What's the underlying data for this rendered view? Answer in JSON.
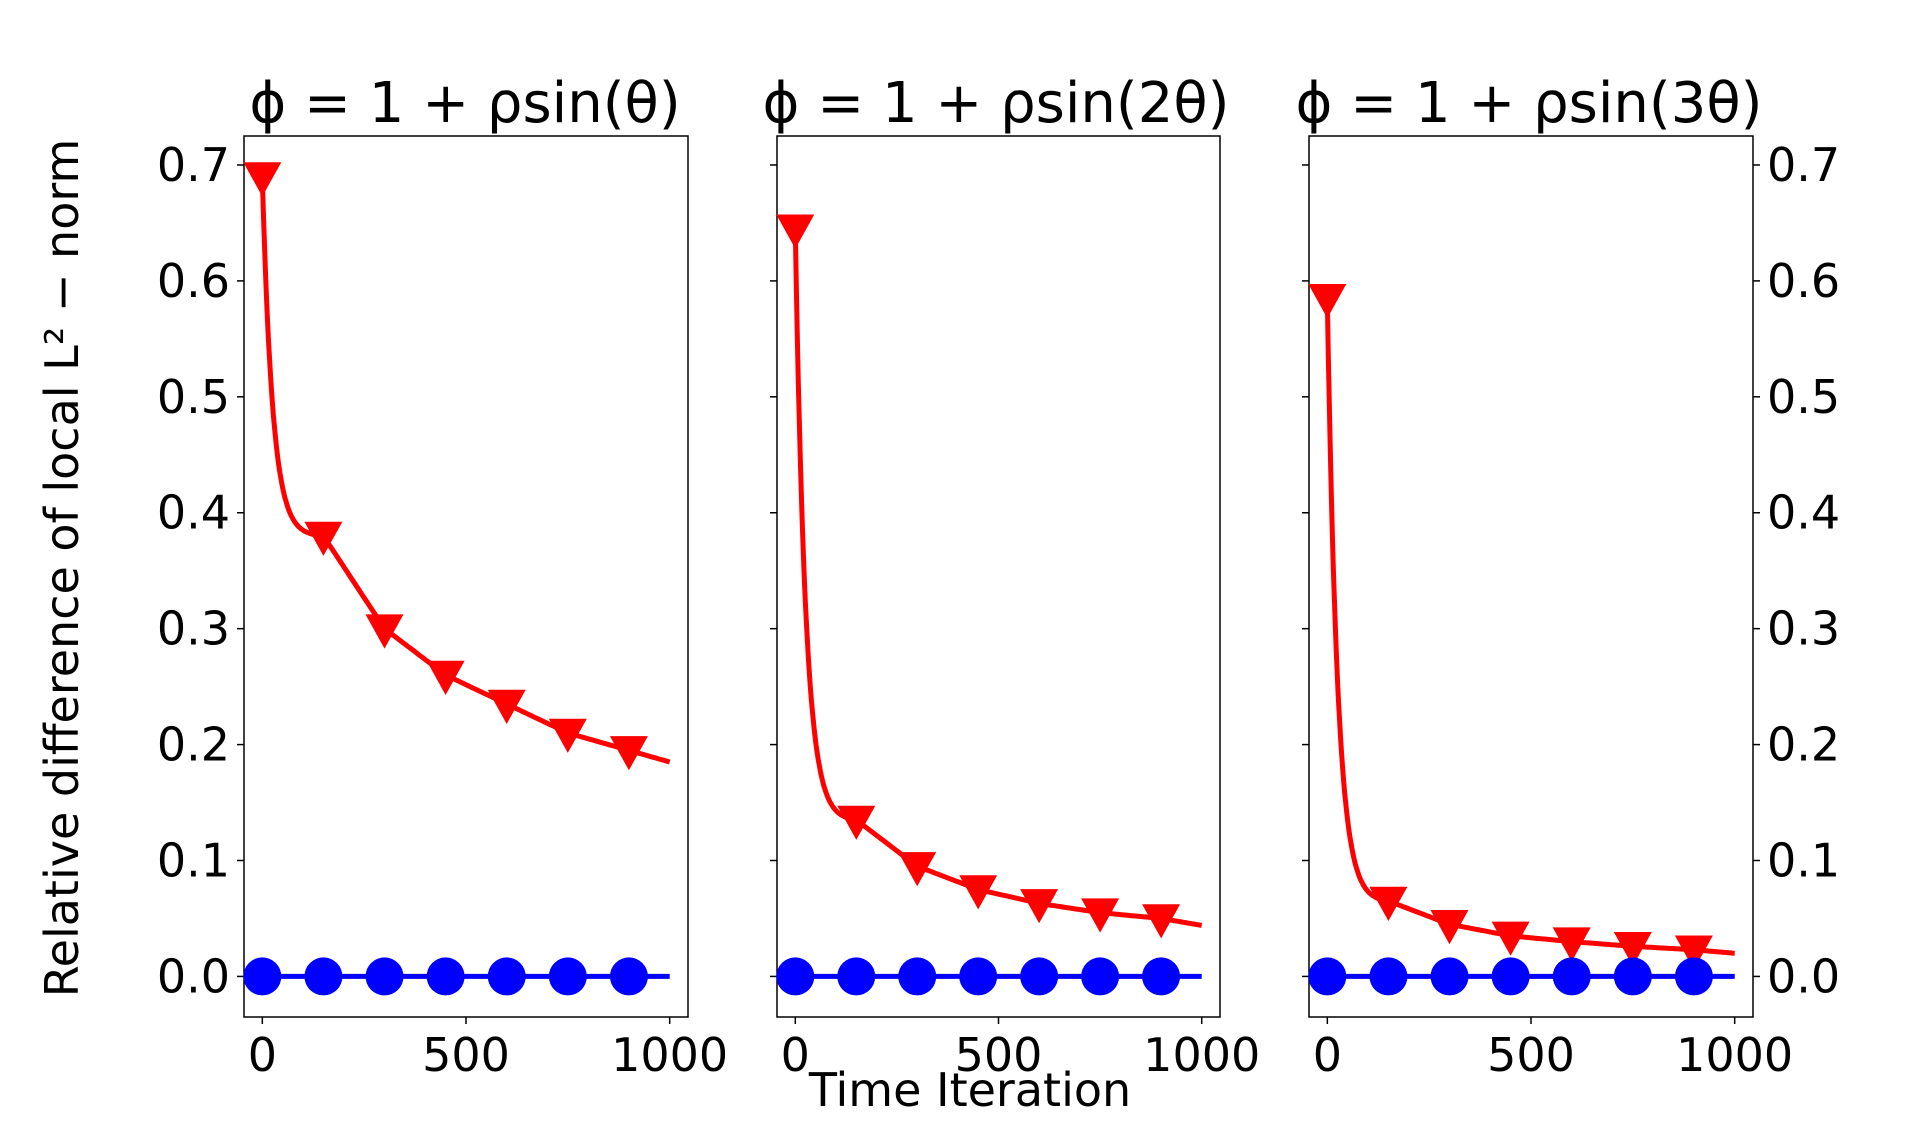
{
  "figure": {
    "ylabel": "Relative difference of local L² − norm",
    "xlabel": "Time Iteration",
    "colors": {
      "decaying": "#ff0000",
      "flat": "#0000ff",
      "axes": "#000000"
    }
  },
  "chart_data": [
    {
      "type": "line",
      "title": "ϕ = 1 + ρsin(θ)",
      "xlim": [
        -45,
        1045
      ],
      "ylim": [
        -0.035,
        0.725
      ],
      "xticks": [
        "0",
        "500",
        "1000"
      ],
      "yticks": [
        "0.0",
        "0.1",
        "0.2",
        "0.3",
        "0.4",
        "0.5",
        "0.6",
        "0.7"
      ],
      "series": [
        {
          "marker": "triangle-down",
          "color": "#ff0000",
          "x": [
            0,
            150,
            300,
            450,
            600,
            750,
            900,
            1000
          ],
          "y": [
            0.69,
            0.38,
            0.3,
            0.26,
            0.235,
            0.21,
            0.195,
            0.185
          ]
        },
        {
          "marker": "circle",
          "color": "#0000ff",
          "x": [
            0,
            150,
            300,
            450,
            600,
            750,
            900,
            1000
          ],
          "y": [
            0,
            0,
            0,
            0,
            0,
            0,
            0,
            0
          ]
        }
      ]
    },
    {
      "type": "line",
      "title": "ϕ = 1 + ρsin(2θ)",
      "xlim": [
        -45,
        1045
      ],
      "ylim": [
        -0.035,
        0.725
      ],
      "xticks": [
        "0",
        "500",
        "1000"
      ],
      "yticks": [],
      "series": [
        {
          "marker": "triangle-down",
          "color": "#ff0000",
          "x": [
            0,
            150,
            300,
            450,
            600,
            750,
            900,
            1000
          ],
          "y": [
            0.645,
            0.135,
            0.095,
            0.075,
            0.063,
            0.055,
            0.05,
            0.044
          ]
        },
        {
          "marker": "circle",
          "color": "#0000ff",
          "x": [
            0,
            150,
            300,
            450,
            600,
            750,
            900,
            1000
          ],
          "y": [
            0,
            0,
            0,
            0,
            0,
            0,
            0,
            0
          ]
        }
      ]
    },
    {
      "type": "line",
      "title": "ϕ = 1 + ρsin(3θ)",
      "xlim": [
        -45,
        1045
      ],
      "ylim": [
        -0.035,
        0.725
      ],
      "xticks": [
        "0",
        "500",
        "1000"
      ],
      "yticks": [
        "0.0",
        "0.1",
        "0.2",
        "0.3",
        "0.4",
        "0.5",
        "0.6",
        "0.7"
      ],
      "yaxis_side": "right",
      "series": [
        {
          "marker": "triangle-down",
          "color": "#ff0000",
          "x": [
            0,
            150,
            300,
            450,
            600,
            750,
            900,
            1000
          ],
          "y": [
            0.585,
            0.065,
            0.045,
            0.035,
            0.03,
            0.026,
            0.023,
            0.02
          ]
        },
        {
          "marker": "circle",
          "color": "#0000ff",
          "x": [
            0,
            150,
            300,
            450,
            600,
            750,
            900,
            1000
          ],
          "y": [
            0,
            0,
            0,
            0,
            0,
            0,
            0,
            0
          ]
        }
      ]
    }
  ]
}
